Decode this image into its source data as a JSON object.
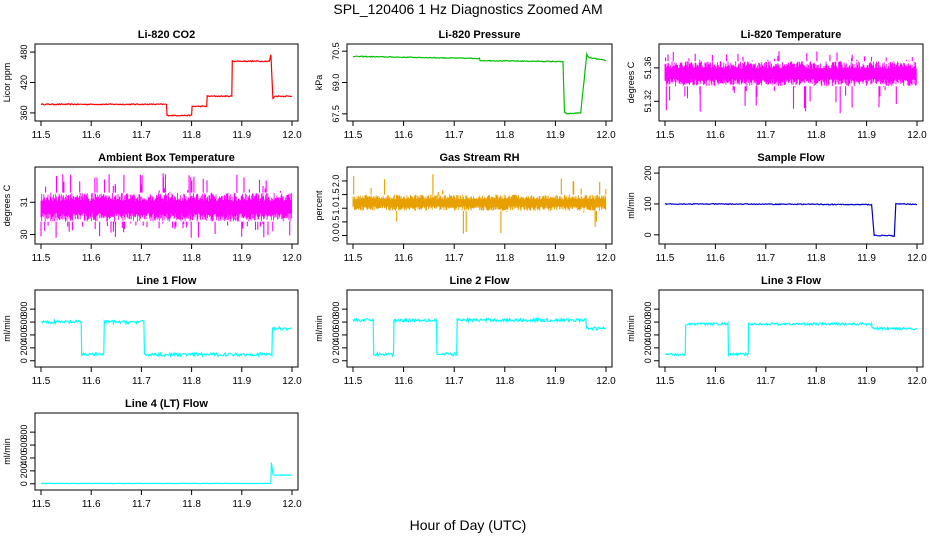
{
  "figure": {
    "title": "SPL_120406  1 Hz Diagnostics Zoomed AM",
    "xlabel": "Hour of Day (UTC)"
  },
  "chart_data": [
    {
      "type": "line",
      "title": "Li-820 CO2",
      "ylabel": "Licor ppm",
      "color": "#ff0000",
      "xlim": [
        11.5,
        12.0
      ],
      "xticks": [
        11.5,
        11.6,
        11.7,
        11.8,
        11.9,
        12.0
      ],
      "ylim": [
        350,
        490
      ],
      "yticks": [
        360,
        420,
        480
      ],
      "noise": 1,
      "x": [
        11.5,
        11.75,
        11.751,
        11.8,
        11.801,
        11.83,
        11.831,
        11.88,
        11.881,
        11.955,
        11.958,
        11.962,
        11.965,
        12.0
      ],
      "y": [
        377,
        377,
        355,
        355,
        373,
        373,
        393,
        393,
        462,
        462,
        475,
        388,
        393,
        393
      ]
    },
    {
      "type": "line",
      "title": "Li-820 Pressure",
      "ylabel": "kPa",
      "color": "#00c000",
      "xlim": [
        11.5,
        12.0
      ],
      "xticks": [
        11.5,
        11.6,
        11.7,
        11.8,
        11.9,
        12.0
      ],
      "ylim": [
        67.3,
        70.7
      ],
      "yticks": [
        67.5,
        69.0,
        70.5
      ],
      "noise": 0.02,
      "x": [
        11.5,
        11.75,
        11.751,
        11.915,
        11.918,
        11.925,
        11.95,
        11.962,
        11.965,
        12.0
      ],
      "y": [
        70.25,
        70.15,
        70.05,
        70.0,
        67.55,
        67.5,
        67.55,
        70.35,
        70.2,
        70.05
      ]
    },
    {
      "type": "band",
      "title": "Li-820 Temperature",
      "ylabel": "degrees C",
      "color": "#ff00ff",
      "xlim": [
        11.5,
        12.0
      ],
      "xticks": [
        11.5,
        11.6,
        11.7,
        11.8,
        11.9,
        12.0
      ],
      "ylim": [
        51.3,
        51.385
      ],
      "yticks": [
        51.32,
        51.36
      ],
      "band": [
        51.338,
        51.368
      ],
      "spike_max": 51.38,
      "spike_min": 51.305,
      "spikes": 60
    },
    {
      "type": "band",
      "title": "Ambient Box Temperature",
      "ylabel": "degrees C",
      "color": "#ff00ff",
      "xlim": [
        11.5,
        12.0
      ],
      "xticks": [
        11.5,
        11.6,
        11.7,
        11.8,
        11.9,
        12.0
      ],
      "ylim": [
        29.8,
        32.0
      ],
      "yticks": [
        30.0,
        31.0
      ],
      "band": [
        30.4,
        31.3
      ],
      "spike_max": 31.9,
      "spike_min": 29.9,
      "spikes": 90
    },
    {
      "type": "band",
      "title": "Gas Stream RH",
      "ylabel": "percent",
      "color": "#e8a000",
      "xlim": [
        11.5,
        12.0
      ],
      "xticks": [
        11.5,
        11.6,
        11.7,
        11.8,
        11.9,
        12.0
      ],
      "ylim": [
        -0.2,
        2.4
      ],
      "yticks": [
        0.0,
        0.5,
        1.0,
        1.5,
        2.0
      ],
      "band": [
        0.9,
        1.5
      ],
      "spike_max": 2.3,
      "spike_min": -0.1,
      "spikes": 20
    },
    {
      "type": "line",
      "title": "Sample Flow",
      "ylabel": "ml/min",
      "color": "#0000cc",
      "xlim": [
        11.5,
        12.0
      ],
      "xticks": [
        11.5,
        11.6,
        11.7,
        11.8,
        11.9,
        12.0
      ],
      "ylim": [
        -20,
        210
      ],
      "yticks": [
        0,
        100,
        200
      ],
      "noise": 1.5,
      "x": [
        11.5,
        11.8,
        11.85,
        11.91,
        11.915,
        11.955,
        11.958,
        12.0
      ],
      "y": [
        100,
        99,
        98,
        98,
        -2,
        -3,
        100,
        99
      ]
    },
    {
      "type": "line",
      "title": "Line 1 Flow",
      "ylabel": "ml/min",
      "color": "#00ffff",
      "xlim": [
        11.5,
        12.0
      ],
      "xticks": [
        11.5,
        11.6,
        11.7,
        11.8,
        11.9,
        12.0
      ],
      "ylim": [
        -50,
        1050
      ],
      "yticks": [
        0,
        200,
        400,
        600,
        800
      ],
      "noise": 25,
      "x": [
        11.5,
        11.58,
        11.581,
        11.625,
        11.626,
        11.705,
        11.706,
        11.74,
        11.96,
        11.961,
        12.0
      ],
      "y": [
        600,
        600,
        100,
        100,
        600,
        600,
        100,
        95,
        100,
        500,
        500
      ]
    },
    {
      "type": "line",
      "title": "Line 2 Flow",
      "ylabel": "ml/min",
      "color": "#00ffff",
      "xlim": [
        11.5,
        12.0
      ],
      "xticks": [
        11.5,
        11.6,
        11.7,
        11.8,
        11.9,
        12.0
      ],
      "ylim": [
        -50,
        1050
      ],
      "yticks": [
        0,
        200,
        400,
        600,
        800
      ],
      "noise": 25,
      "x": [
        11.5,
        11.54,
        11.541,
        11.58,
        11.581,
        11.665,
        11.666,
        11.705,
        11.706,
        11.96,
        11.961,
        12.0
      ],
      "y": [
        630,
        630,
        100,
        100,
        630,
        630,
        100,
        100,
        630,
        630,
        500,
        500
      ]
    },
    {
      "type": "line",
      "title": "Line 3 Flow",
      "ylabel": "ml/min",
      "color": "#00ffff",
      "xlim": [
        11.5,
        12.0
      ],
      "xticks": [
        11.5,
        11.6,
        11.7,
        11.8,
        11.9,
        12.0
      ],
      "ylim": [
        -50,
        1050
      ],
      "yticks": [
        0,
        200,
        400,
        600,
        800
      ],
      "noise": 18,
      "x": [
        11.5,
        11.54,
        11.541,
        11.625,
        11.626,
        11.665,
        11.666,
        11.91,
        11.911,
        12.0
      ],
      "y": [
        100,
        100,
        570,
        570,
        100,
        100,
        570,
        570,
        500,
        500
      ]
    },
    {
      "type": "line",
      "title": "Line 4 (LT) Flow",
      "ylabel": "ml/min",
      "color": "#00ffff",
      "xlim": [
        11.5,
        12.0
      ],
      "xticks": [
        11.5,
        11.6,
        11.7,
        11.8,
        11.9,
        12.0
      ],
      "ylim": [
        -50,
        1050
      ],
      "yticks": [
        0,
        200,
        400,
        600,
        800
      ],
      "noise": 2,
      "x": [
        11.5,
        11.958,
        11.959,
        11.962,
        11.963,
        12.0
      ],
      "y": [
        5,
        5,
        330,
        150,
        135,
        135
      ]
    }
  ]
}
